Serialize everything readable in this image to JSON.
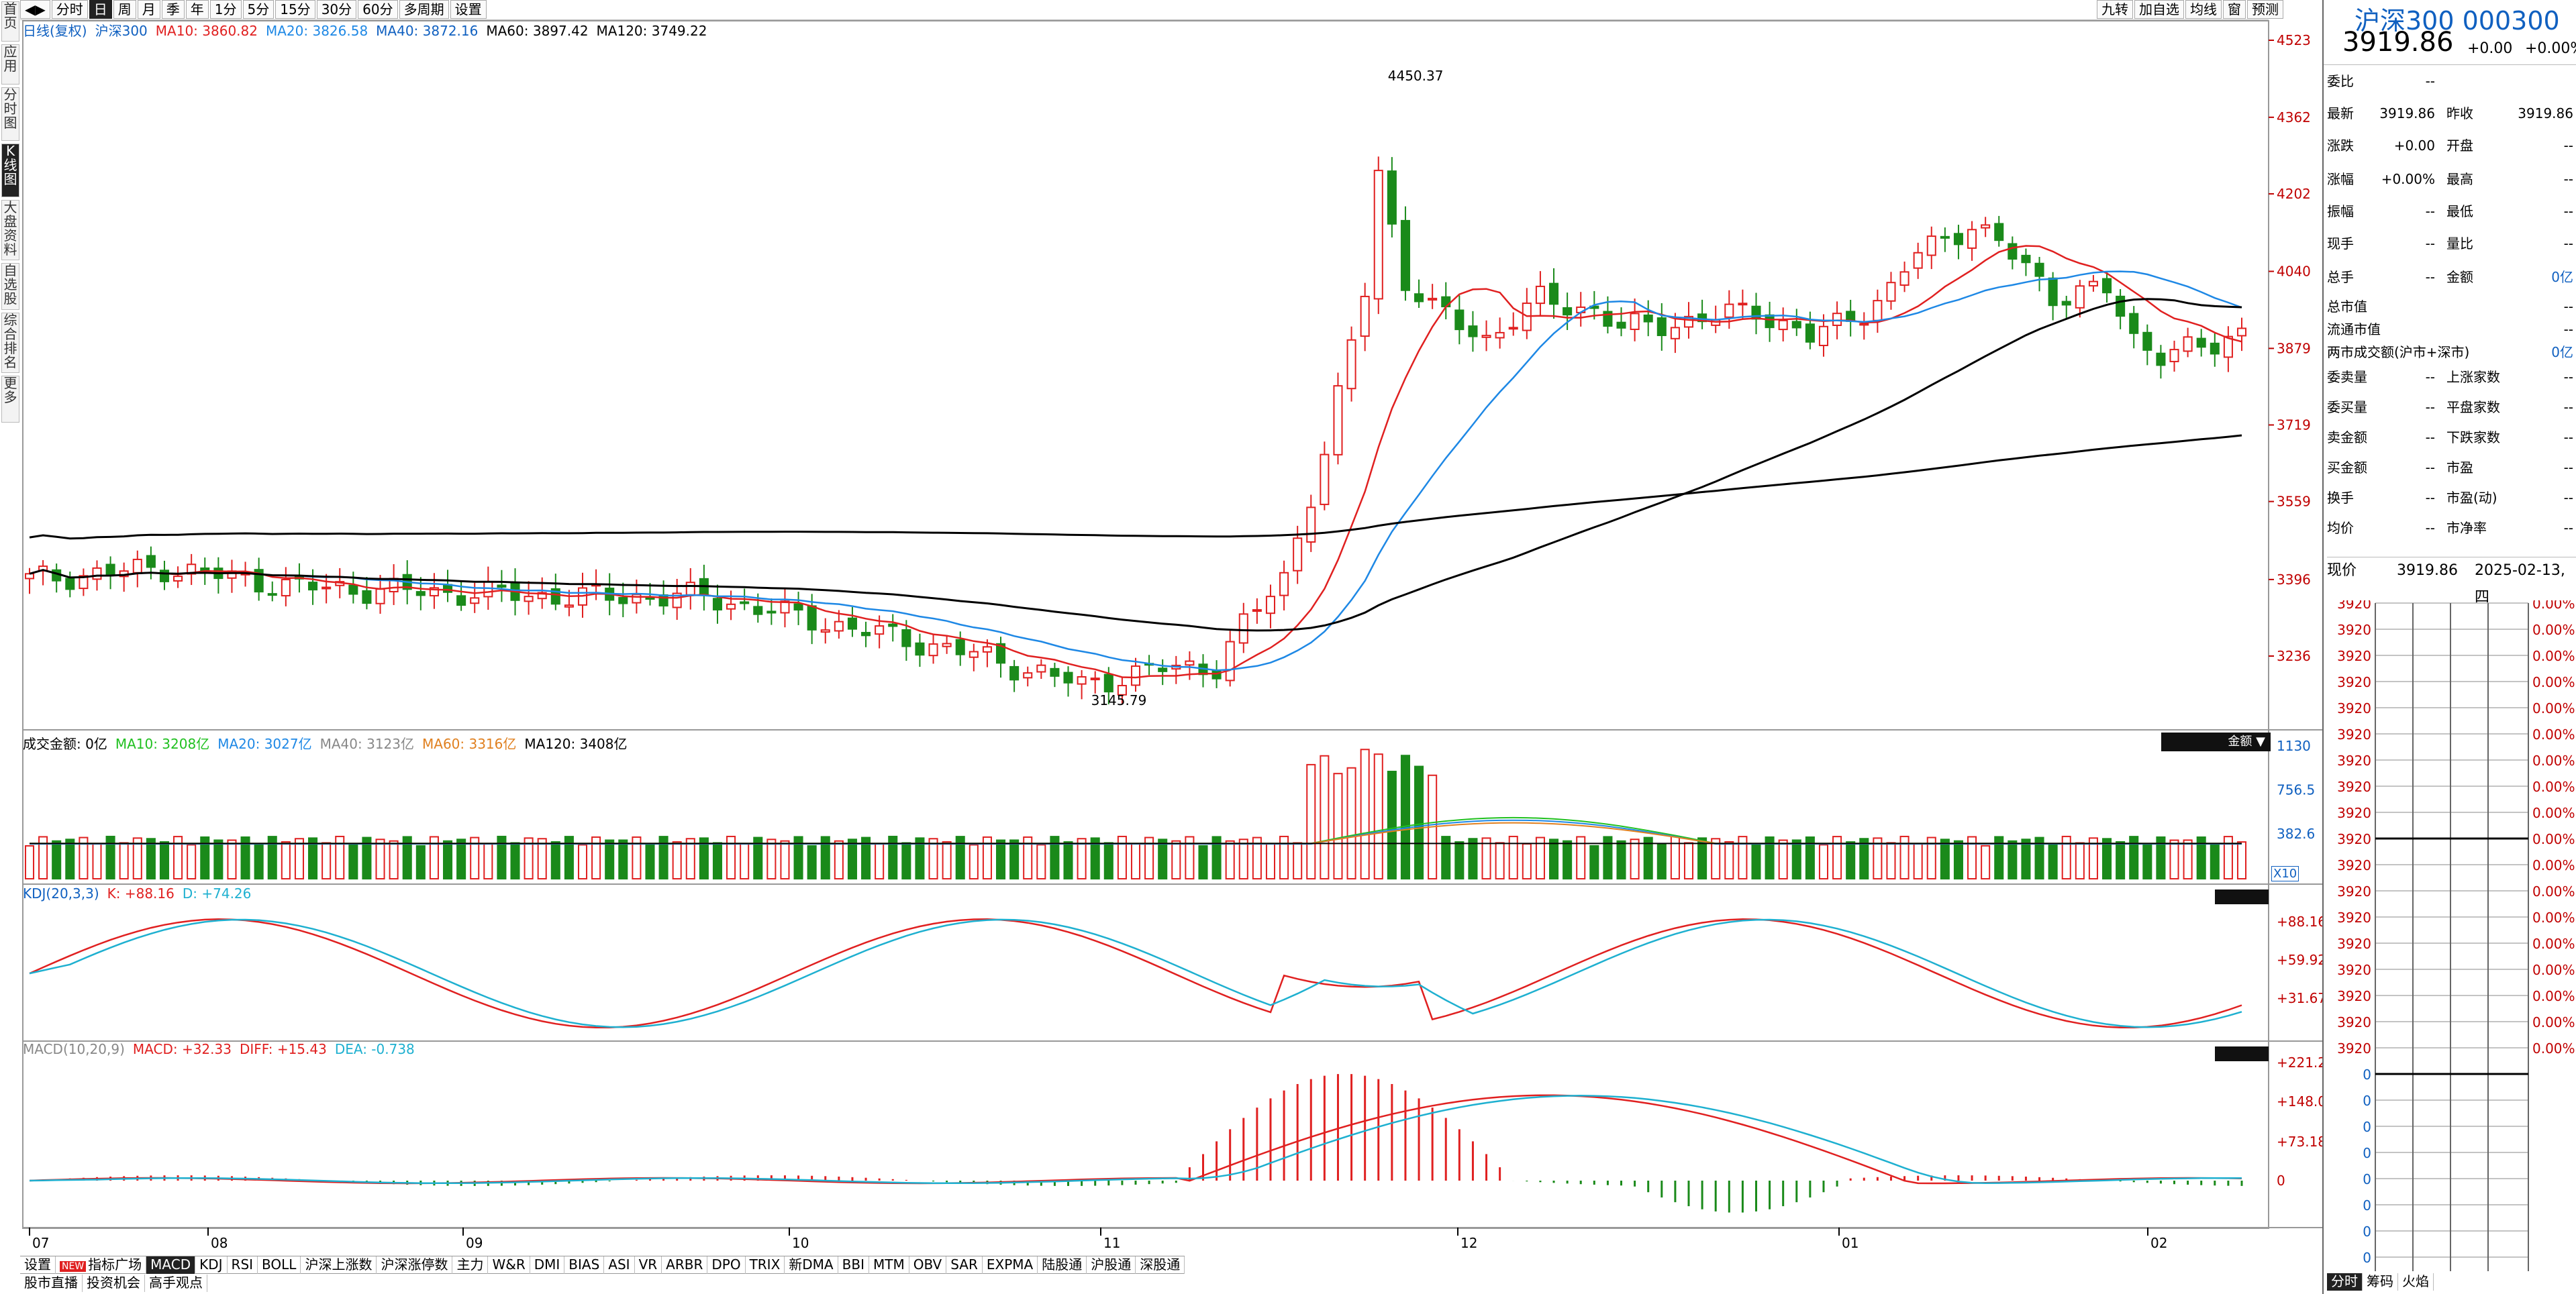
{
  "left_tabs": [
    "首页",
    "应用",
    "分时图",
    "K线图",
    "大盘资料",
    "自选股",
    "综合排名",
    "更多"
  ],
  "left_tabs_active": 3,
  "period_tabs": [
    "分时",
    "日",
    "周",
    "月",
    "季",
    "年",
    "1分",
    "5分",
    "15分",
    "30分",
    "60分",
    "多周期",
    "设置"
  ],
  "period_tabs_active": 1,
  "top_right_tabs": [
    "九转",
    "加自选",
    "均线",
    "窗",
    "预测"
  ],
  "main_legend": [
    {
      "label": "日线(复权)",
      "color": "#1060c0"
    },
    {
      "label": "沪深300",
      "color": "#1060c0"
    },
    {
      "label": "MA10: 3860.82",
      "color": "#e02020"
    },
    {
      "label": "MA20: 3826.58",
      "color": "#1e88e5"
    },
    {
      "label": "MA40: 3872.16",
      "color": "#1060c0"
    },
    {
      "label": "MA60: 3897.42",
      "color": "#000000"
    },
    {
      "label": "MA120: 3749.22",
      "color": "#000000"
    }
  ],
  "price_axis": [
    "4523",
    "4362",
    "4202",
    "4040",
    "3879",
    "3719",
    "3559",
    "3396",
    "3236"
  ],
  "high_annotation": "4450.37",
  "low_annotation": "3145.79",
  "volume_legend": [
    {
      "label": "成交金额: 0亿",
      "color": "#000000"
    },
    {
      "label": "MA10: 3208亿",
      "color": "#20c020"
    },
    {
      "label": "MA20: 3027亿",
      "color": "#1e88e5"
    },
    {
      "label": "MA40: 3123亿",
      "color": "#888888"
    },
    {
      "label": "MA60: 3316亿",
      "color": "#e08020"
    },
    {
      "label": "MA120: 3408亿",
      "color": "#000000"
    }
  ],
  "volume_axis": [
    "1130",
    "756.5",
    "382.6"
  ],
  "volume_unit": "X10",
  "volume_button": "金额",
  "kdj_legend": [
    {
      "label": "KDJ(20,3,3)",
      "color": "#1060c0"
    },
    {
      "label": "K: +88.16",
      "color": "#e02020"
    },
    {
      "label": "D: +74.26",
      "color": "#1eb0d0"
    }
  ],
  "kdj_axis": [
    "+88.16",
    "+59.92",
    "+31.67"
  ],
  "macd_legend": [
    {
      "label": "MACD(10,20,9)",
      "color": "#888888"
    },
    {
      "label": "MACD: +32.33",
      "color": "#e02020"
    },
    {
      "label": "DIFF: +15.43",
      "color": "#e02020"
    },
    {
      "label": "DEA: -0.738",
      "color": "#1eb0d0"
    }
  ],
  "macd_axis": [
    "+221.2",
    "+148.0",
    "+73.18",
    "0"
  ],
  "date_axis": [
    "07",
    "08",
    "09",
    "10",
    "11",
    "12",
    "01",
    "02"
  ],
  "indicator_tabs": [
    "设置",
    "指标广场",
    "MACD",
    "KDJ",
    "RSI",
    "BOLL",
    "沪深上涨数",
    "沪深涨停数",
    "主力",
    "W&R",
    "DMI",
    "BIAS",
    "ASI",
    "VR",
    "ARBR",
    "DPO",
    "TRIX",
    "新DMA",
    "BBI",
    "MTM",
    "OBV",
    "SAR",
    "EXPMA",
    "陆股通",
    "沪股通",
    "深股通"
  ],
  "indicator_tabs_active": 2,
  "indicator_new_badge": "NEW",
  "bottom_tabs": [
    "股市直播",
    "投资机会",
    "高手观点"
  ],
  "quote": {
    "title": "沪深300 000300",
    "price": "3919.86",
    "change": "+0.00",
    "change_pct": "+0.00%",
    "rows": [
      [
        "委比",
        "--",
        "",
        ""
      ],
      [
        "最新",
        "3919.86",
        "昨收",
        "3919.86"
      ],
      [
        "涨跌",
        "+0.00",
        "开盘",
        "--"
      ],
      [
        "涨幅",
        "+0.00%",
        "最高",
        "--"
      ],
      [
        "振幅",
        "--",
        "最低",
        "--"
      ],
      [
        "现手",
        "--",
        "量比",
        "--"
      ],
      [
        "总手",
        "--",
        "金额",
        "0亿"
      ]
    ],
    "rows2": [
      [
        "总市值",
        "--"
      ],
      [
        "流通市值",
        "--"
      ],
      [
        "两市成交额(沪市+深市)",
        "0亿"
      ]
    ],
    "rows3": [
      [
        "委卖量",
        "--",
        "上涨家数",
        "--"
      ],
      [
        "委买量",
        "--",
        "平盘家数",
        "--"
      ],
      [
        "卖金额",
        "--",
        "下跌家数",
        "--"
      ],
      [
        "买金额",
        "--",
        "市盈",
        "--"
      ],
      [
        "换手",
        "--",
        "市盈(动)",
        "--"
      ],
      [
        "均价",
        "--",
        "市净率",
        "--"
      ]
    ],
    "current_label": "现价",
    "current_value": "3919.86",
    "current_date": "2025-02-13,四",
    "mini_prices": [
      "3920",
      "3920",
      "3920",
      "3920",
      "3920",
      "3920",
      "3920",
      "3920",
      "3920",
      "3920",
      "3920",
      "3920",
      "3920",
      "3920",
      "3920",
      "3920",
      "3920",
      "3920",
      "0",
      "0",
      "0",
      "0",
      "0",
      "0",
      "0",
      "0",
      "0"
    ],
    "mini_pcts": [
      "0.00%",
      "0.00%",
      "0.00%",
      "0.00%",
      "0.00%",
      "0.00%",
      "0.00%",
      "0.00%",
      "0.00%",
      "0.00%",
      "0.00%",
      "0.00%",
      "0.00%",
      "0.00%",
      "0.00%",
      "0.00%",
      "0.00%",
      "0.00%"
    ],
    "bottom_tabs": [
      "分时",
      "筹码",
      "火焰"
    ]
  },
  "colors": {
    "up": "#e02020",
    "down": "#1a8a1a",
    "ma10": "#e02020",
    "ma20": "#1e88e5",
    "ma60": "#000000",
    "kd_k": "#e02020",
    "kd_d": "#1eb0d0"
  }
}
